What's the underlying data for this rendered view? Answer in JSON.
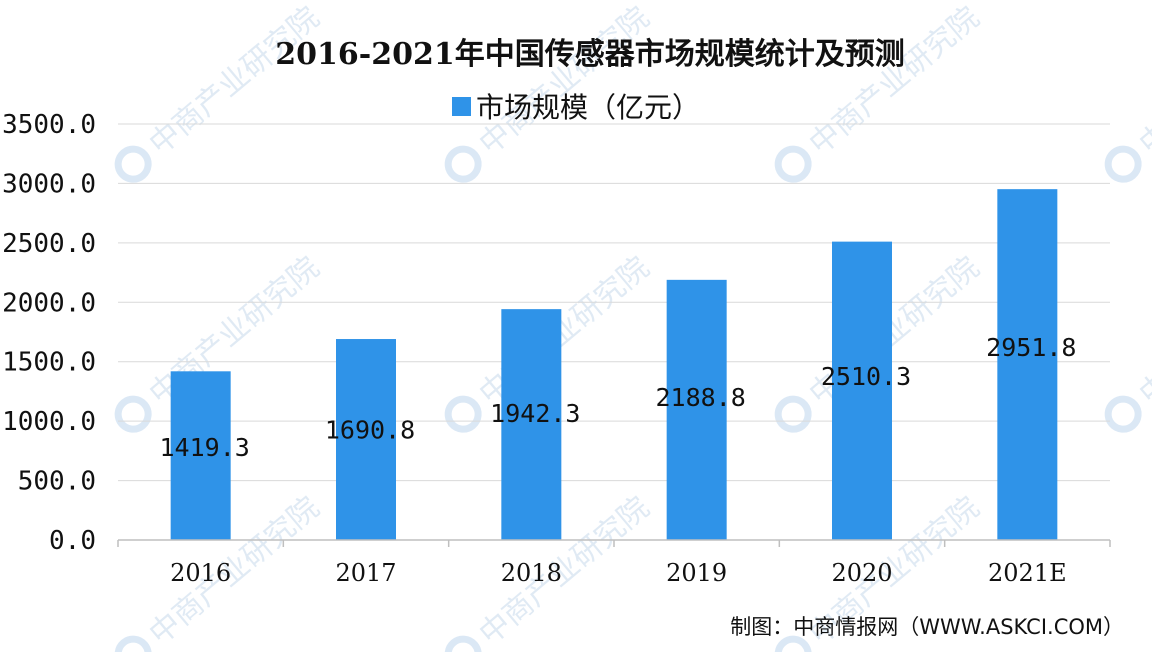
{
  "chart_data": {
    "type": "bar",
    "title": "2016-2021年中国传感器市场规模统计及预测",
    "categories": [
      "2016",
      "2017",
      "2018",
      "2019",
      "2020",
      "2021E"
    ],
    "series": [
      {
        "name": "市场规模（亿元）",
        "values": [
          1419.3,
          1690.8,
          1942.3,
          2188.8,
          2510.3,
          2951.8
        ],
        "value_labels": [
          "1419.3",
          "1690.8",
          "1942.3",
          "2188.8",
          "2510.3",
          "2951.8"
        ]
      }
    ],
    "yticks": [
      "0.0",
      "500.0",
      "1000.0",
      "1500.0",
      "2000.0",
      "2500.0",
      "3000.0",
      "3500.0"
    ],
    "ylim": [
      0,
      3500
    ],
    "grid": true,
    "legend_position": "top-center",
    "bar_color": "#2f93e8",
    "source": "制图：中商情报网（WWW.ASKCI.COM）",
    "watermark": "中商产业研究院"
  }
}
